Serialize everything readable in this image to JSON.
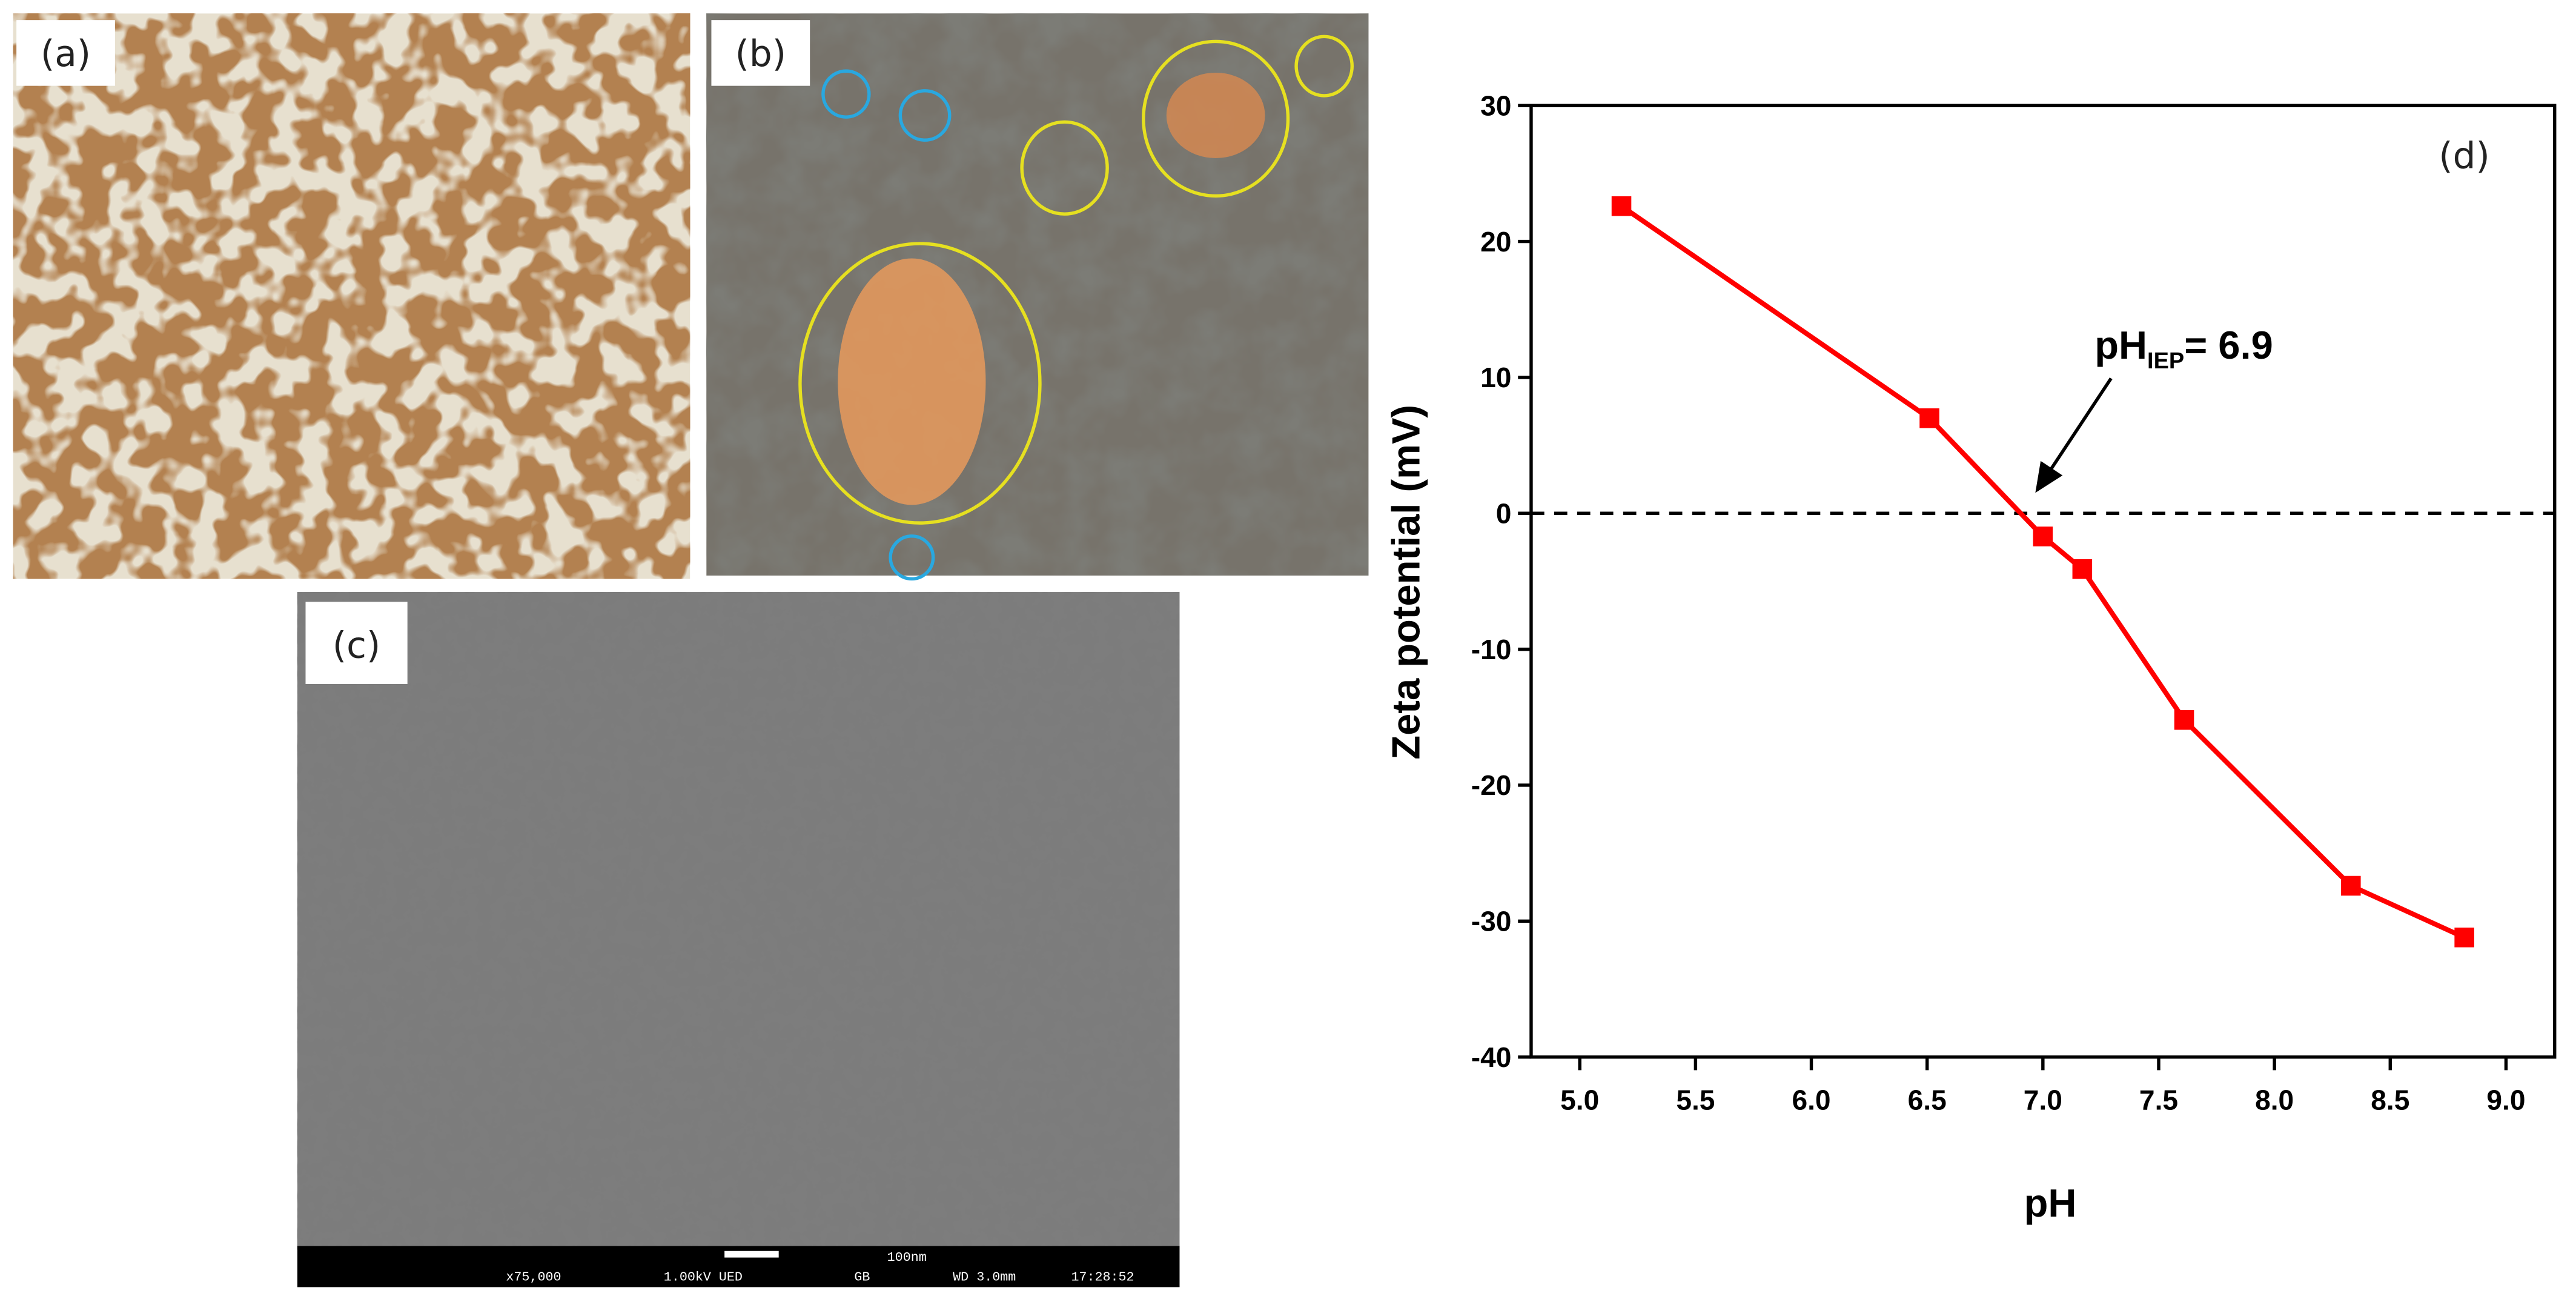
{
  "panel_labels": [
    "(a)",
    "(b)",
    "(c)"
  ],
  "sem_bar": {
    "scale": "100nm",
    "magnification": "x75,000",
    "voltage": "1.00kV UED",
    "mode": "GB",
    "distance": "WD 3.0mm",
    "time": "17:28:52"
  },
  "chart_data": {
    "type": "line",
    "panel_label": "(d)",
    "x_label": "pH",
    "y_label": "Zeta potential (mV)",
    "x": [
      5.18,
      6.51,
      7.0,
      7.17,
      7.61,
      8.33,
      8.82
    ],
    "series": [
      {
        "color": "#ff0000",
        "values": [
          22.6,
          7.0,
          -1.7,
          -4.1,
          -15.2,
          -27.4,
          -31.2
        ]
      }
    ],
    "xlim": [
      4.79,
      9.21
    ],
    "ylim": [
      -40,
      30
    ],
    "xticks": [
      {
        "value": 5,
        "label": "5.0"
      },
      5.5,
      6,
      6.5,
      7,
      7.5,
      8,
      8.5,
      9
    ],
    "yticks": [
      -40,
      -30,
      -20,
      -10,
      0,
      10,
      20,
      30
    ],
    "reference_line": 0,
    "annotation": {
      "text": "pH",
      "subscript": "IEP",
      "suffix": "= 6.9"
    }
  }
}
